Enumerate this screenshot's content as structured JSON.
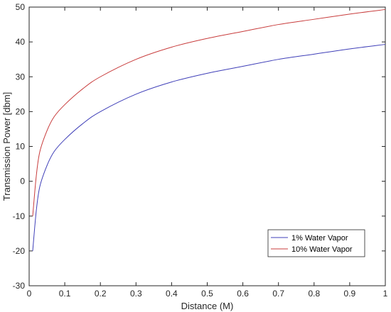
{
  "chart_data": {
    "type": "line",
    "xlabel": "Distance (M)",
    "ylabel": "Transmission Power [dbm]",
    "xlim": [
      0,
      1
    ],
    "ylim": [
      -30,
      50
    ],
    "x_ticks": [
      0,
      0.1,
      0.2,
      0.3,
      0.4,
      0.5,
      0.6,
      0.7,
      0.8,
      0.9,
      1
    ],
    "x_tick_labels": [
      "0",
      "0.1",
      "0.2",
      "0.3",
      "0.4",
      "0.5",
      "0.6",
      "0.7",
      "0.8",
      "0.9",
      "1"
    ],
    "y_ticks": [
      -30,
      -20,
      -10,
      0,
      10,
      20,
      30,
      40,
      50
    ],
    "y_tick_labels": [
      "-30",
      "-20",
      "-10",
      "0",
      "10",
      "20",
      "30",
      "40",
      "50"
    ],
    "grid": false,
    "legend_position": "bottom-right",
    "series": [
      {
        "name": "1% Water Vapor",
        "color": "#3f3fb8",
        "x": [
          0.01,
          0.02,
          0.03,
          0.05,
          0.07,
          0.1,
          0.15,
          0.2,
          0.3,
          0.4,
          0.5,
          0.6,
          0.7,
          0.8,
          0.9,
          1.0
        ],
        "y": [
          -20,
          -8.5,
          -1.5,
          4.5,
          8.5,
          12,
          16.5,
          20,
          25,
          28.5,
          31,
          33,
          35,
          36.5,
          38,
          39.3
        ]
      },
      {
        "name": "10% Water Vapor",
        "color": "#c83c3c",
        "x": [
          0.01,
          0.02,
          0.03,
          0.05,
          0.07,
          0.1,
          0.15,
          0.2,
          0.3,
          0.4,
          0.5,
          0.6,
          0.7,
          0.8,
          0.9,
          1.0
        ],
        "y": [
          -10,
          1.5,
          8.5,
          14.5,
          18.5,
          22,
          26.5,
          30,
          35,
          38.5,
          41,
          43,
          45,
          46.5,
          48,
          49.3
        ]
      }
    ]
  }
}
